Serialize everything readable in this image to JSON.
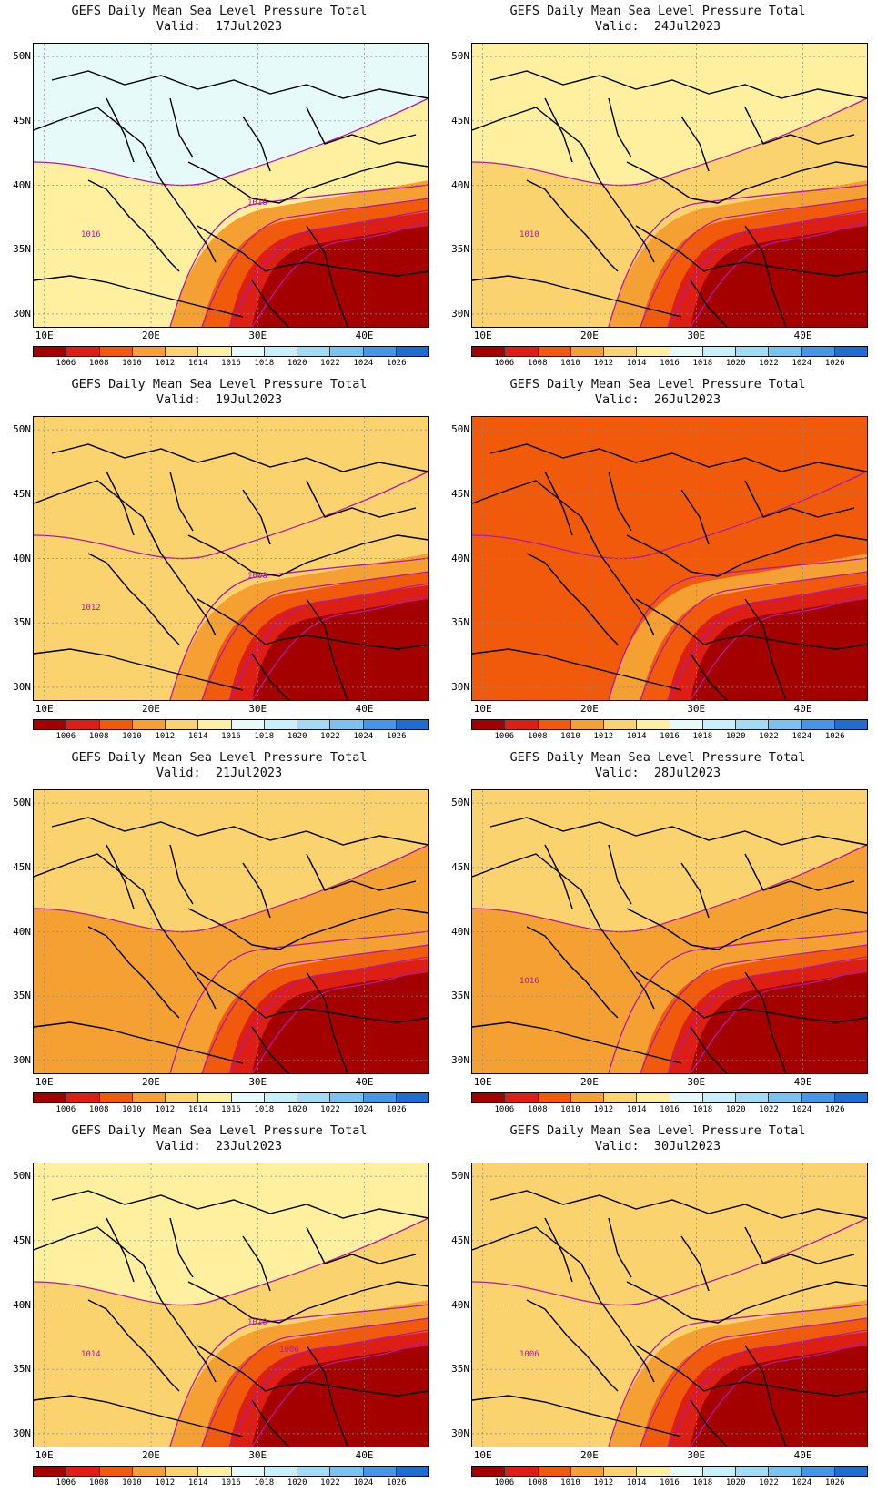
{
  "colorbar": {
    "ticks": [
      "1006",
      "1008",
      "1010",
      "1012",
      "1014",
      "1016",
      "1018",
      "1020",
      "1022",
      "1024",
      "1026"
    ],
    "colors": [
      "#a50000",
      "#dc1e14",
      "#f05a0a",
      "#f5a032",
      "#fad26e",
      "#fff0a0",
      "#e6fafa",
      "#c8f0fa",
      "#a0dcf5",
      "#78c3f0",
      "#4696e6",
      "#1e6ed2"
    ]
  },
  "axes": {
    "lat_labels": [
      "50N",
      "45N",
      "40N",
      "35N",
      "30N"
    ],
    "lon_labels": [
      "10E",
      "20E",
      "30E",
      "40E"
    ]
  },
  "panels": [
    {
      "id": "p1",
      "title": "GEFS Daily Mean Sea Level Pressure Total",
      "valid": "Valid:  17Jul2023",
      "contour_labels": [
        "1016",
        "1016"
      ],
      "fill_levels": {
        "north": "1016-1018",
        "central": "1014-1016",
        "east_med": "<1006"
      }
    },
    {
      "id": "p2",
      "title": "GEFS Daily Mean Sea Level Pressure Total",
      "valid": "Valid:  24Jul2023",
      "contour_labels": [
        "1010"
      ],
      "fill_levels": {
        "north": "1014-1016",
        "central": "1012-1014",
        "east_med": "<1006"
      }
    },
    {
      "id": "p3",
      "title": "GEFS Daily Mean Sea Level Pressure Total",
      "valid": "Valid:  19Jul2023",
      "contour_labels": [
        "1012",
        "1008"
      ],
      "fill_levels": {
        "north": "1012-1014",
        "central": "1012-1014",
        "east_med": "<1006"
      }
    },
    {
      "id": "p4",
      "title": "GEFS Daily Mean Sea Level Pressure Total",
      "valid": "Valid:  26Jul2023",
      "contour_labels": [],
      "fill_levels": {
        "north": "1008-1010",
        "central": "1008-1010",
        "east_med": "<1006"
      }
    },
    {
      "id": "p5",
      "title": "GEFS Daily Mean Sea Level Pressure Total",
      "valid": "Valid:  21Jul2023",
      "contour_labels": [],
      "fill_levels": {
        "north": "1012-1014",
        "central": "1010-1012",
        "east_med": "<1006"
      }
    },
    {
      "id": "p6",
      "title": "GEFS Daily Mean Sea Level Pressure Total",
      "valid": "Valid:  28Jul2023",
      "contour_labels": [
        "1016"
      ],
      "fill_levels": {
        "north": "1012-1014",
        "central": "1010-1012",
        "east_med": "<1006"
      }
    },
    {
      "id": "p7",
      "title": "GEFS Daily Mean Sea Level Pressure Total",
      "valid": "Valid:  23Jul2023",
      "contour_labels": [
        "1014",
        "1010",
        "1006"
      ],
      "fill_levels": {
        "north": "1014-1016",
        "central": "1012-1014",
        "east_med": "<1006"
      }
    },
    {
      "id": "p8",
      "title": "GEFS Daily Mean Sea Level Pressure Total",
      "valid": "Valid:  30Jul2023",
      "contour_labels": [
        "1006"
      ],
      "fill_levels": {
        "north": "1012-1014",
        "central": "1012-1014",
        "east_med": "<1006"
      }
    }
  ]
}
